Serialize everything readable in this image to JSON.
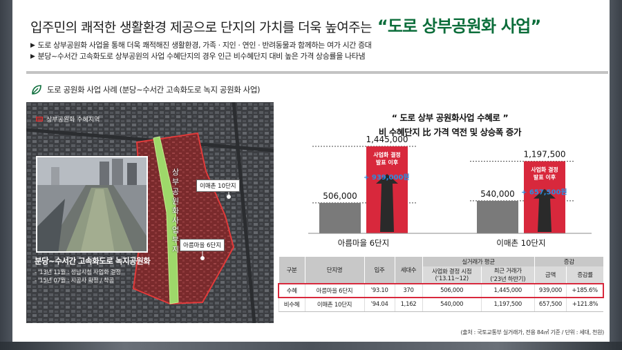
{
  "header": {
    "title_main": "입주민의 쾌적한 생활환경 제공으로 단지의 가치를 더욱 높여주는",
    "title_accent": "“도로 상부공원화 사업”",
    "bullets": [
      "도로 상부공원화 사업을 통해 더욱 쾌적해진 생활환경, 가족 · 지인 · 연인 · 반려동물과 함께하는 여가 시간 증대",
      "분당~수서간 고속화도로 상부공원의 사업 수혜단지의 경우 인근 비수혜단지 대비 높은 가격 상승률을 나타냄"
    ],
    "bullet_marker": "▶"
  },
  "section": {
    "title": "도로 공원화 사업 사례 (분당~수서간 고속화도로 녹지 공원화 사업)",
    "icon": "leaf-icon"
  },
  "aerial": {
    "legend": "상부공원화 수혜지역",
    "park_label": "상부공원화사업부지",
    "tag_imae": "이매촌 10단지",
    "tag_areum": "아름마을 6단지",
    "caption_title": "분당~수서간 고속화도로 녹지공원화",
    "caption_lines": [
      "- '13년 11월 : 성남시청 사업화 결정",
      "- '15년 07월 : 시공사 확정 / 착공"
    ]
  },
  "chart_data": {
    "type": "bar",
    "title_line1": "“ 도로 상부 공원화사업 수혜로 ”",
    "title_line2": "비 수혜단지 比 가격 역전 및 상승폭 증가",
    "categories": [
      "아름마을 6단지",
      "이매촌 10단지"
    ],
    "series": [
      {
        "values": [
          506000,
          540000
        ]
      },
      {
        "values": [
          1445000,
          1197500
        ]
      }
    ],
    "value_labels": [
      [
        "506,000",
        "1,445,000"
      ],
      [
        "540,000",
        "1,197,500"
      ]
    ],
    "bar_annotation": [
      "사업화 결정",
      "발표 이후"
    ],
    "increase_labels": [
      "+ 939,000원",
      "+ 657,500원"
    ],
    "ylim": [
      0,
      1445000
    ],
    "colors": {
      "before": "#7a7a7a",
      "after": "#d8283c",
      "arrow": "#2a2a2a",
      "increase": "#2a8de0"
    }
  },
  "table": {
    "headers": [
      "구분",
      "단지명",
      "입주",
      "세대수"
    ],
    "group_price": "실거래가 평균",
    "group_increase": "증감",
    "sub_headers": [
      "사업화 결정 시점",
      "최근 거래가",
      "금액",
      "증감률"
    ],
    "sub_headers_2": [
      "(‘13.11~12)",
      "(‘23년 하반기)"
    ],
    "rows": [
      {
        "type": "수혜",
        "name": "아름마을 6단지",
        "moved": "’93.10",
        "units": "370",
        "price_then": "506,000",
        "price_now": "1,445,000",
        "diff": "939,000",
        "rate": "+185.6%"
      },
      {
        "type": "비수혜",
        "name": "이매촌 10단지",
        "moved": "’94.04",
        "units": "1,162",
        "price_then": "540,000",
        "price_now": "1,197,500",
        "diff": "657,500",
        "rate": "+121.8%"
      }
    ]
  },
  "source": "(출처 : 국토교통부 실거래가, 전용 84㎡ 기준 / 단위 : 세대, 천원)"
}
